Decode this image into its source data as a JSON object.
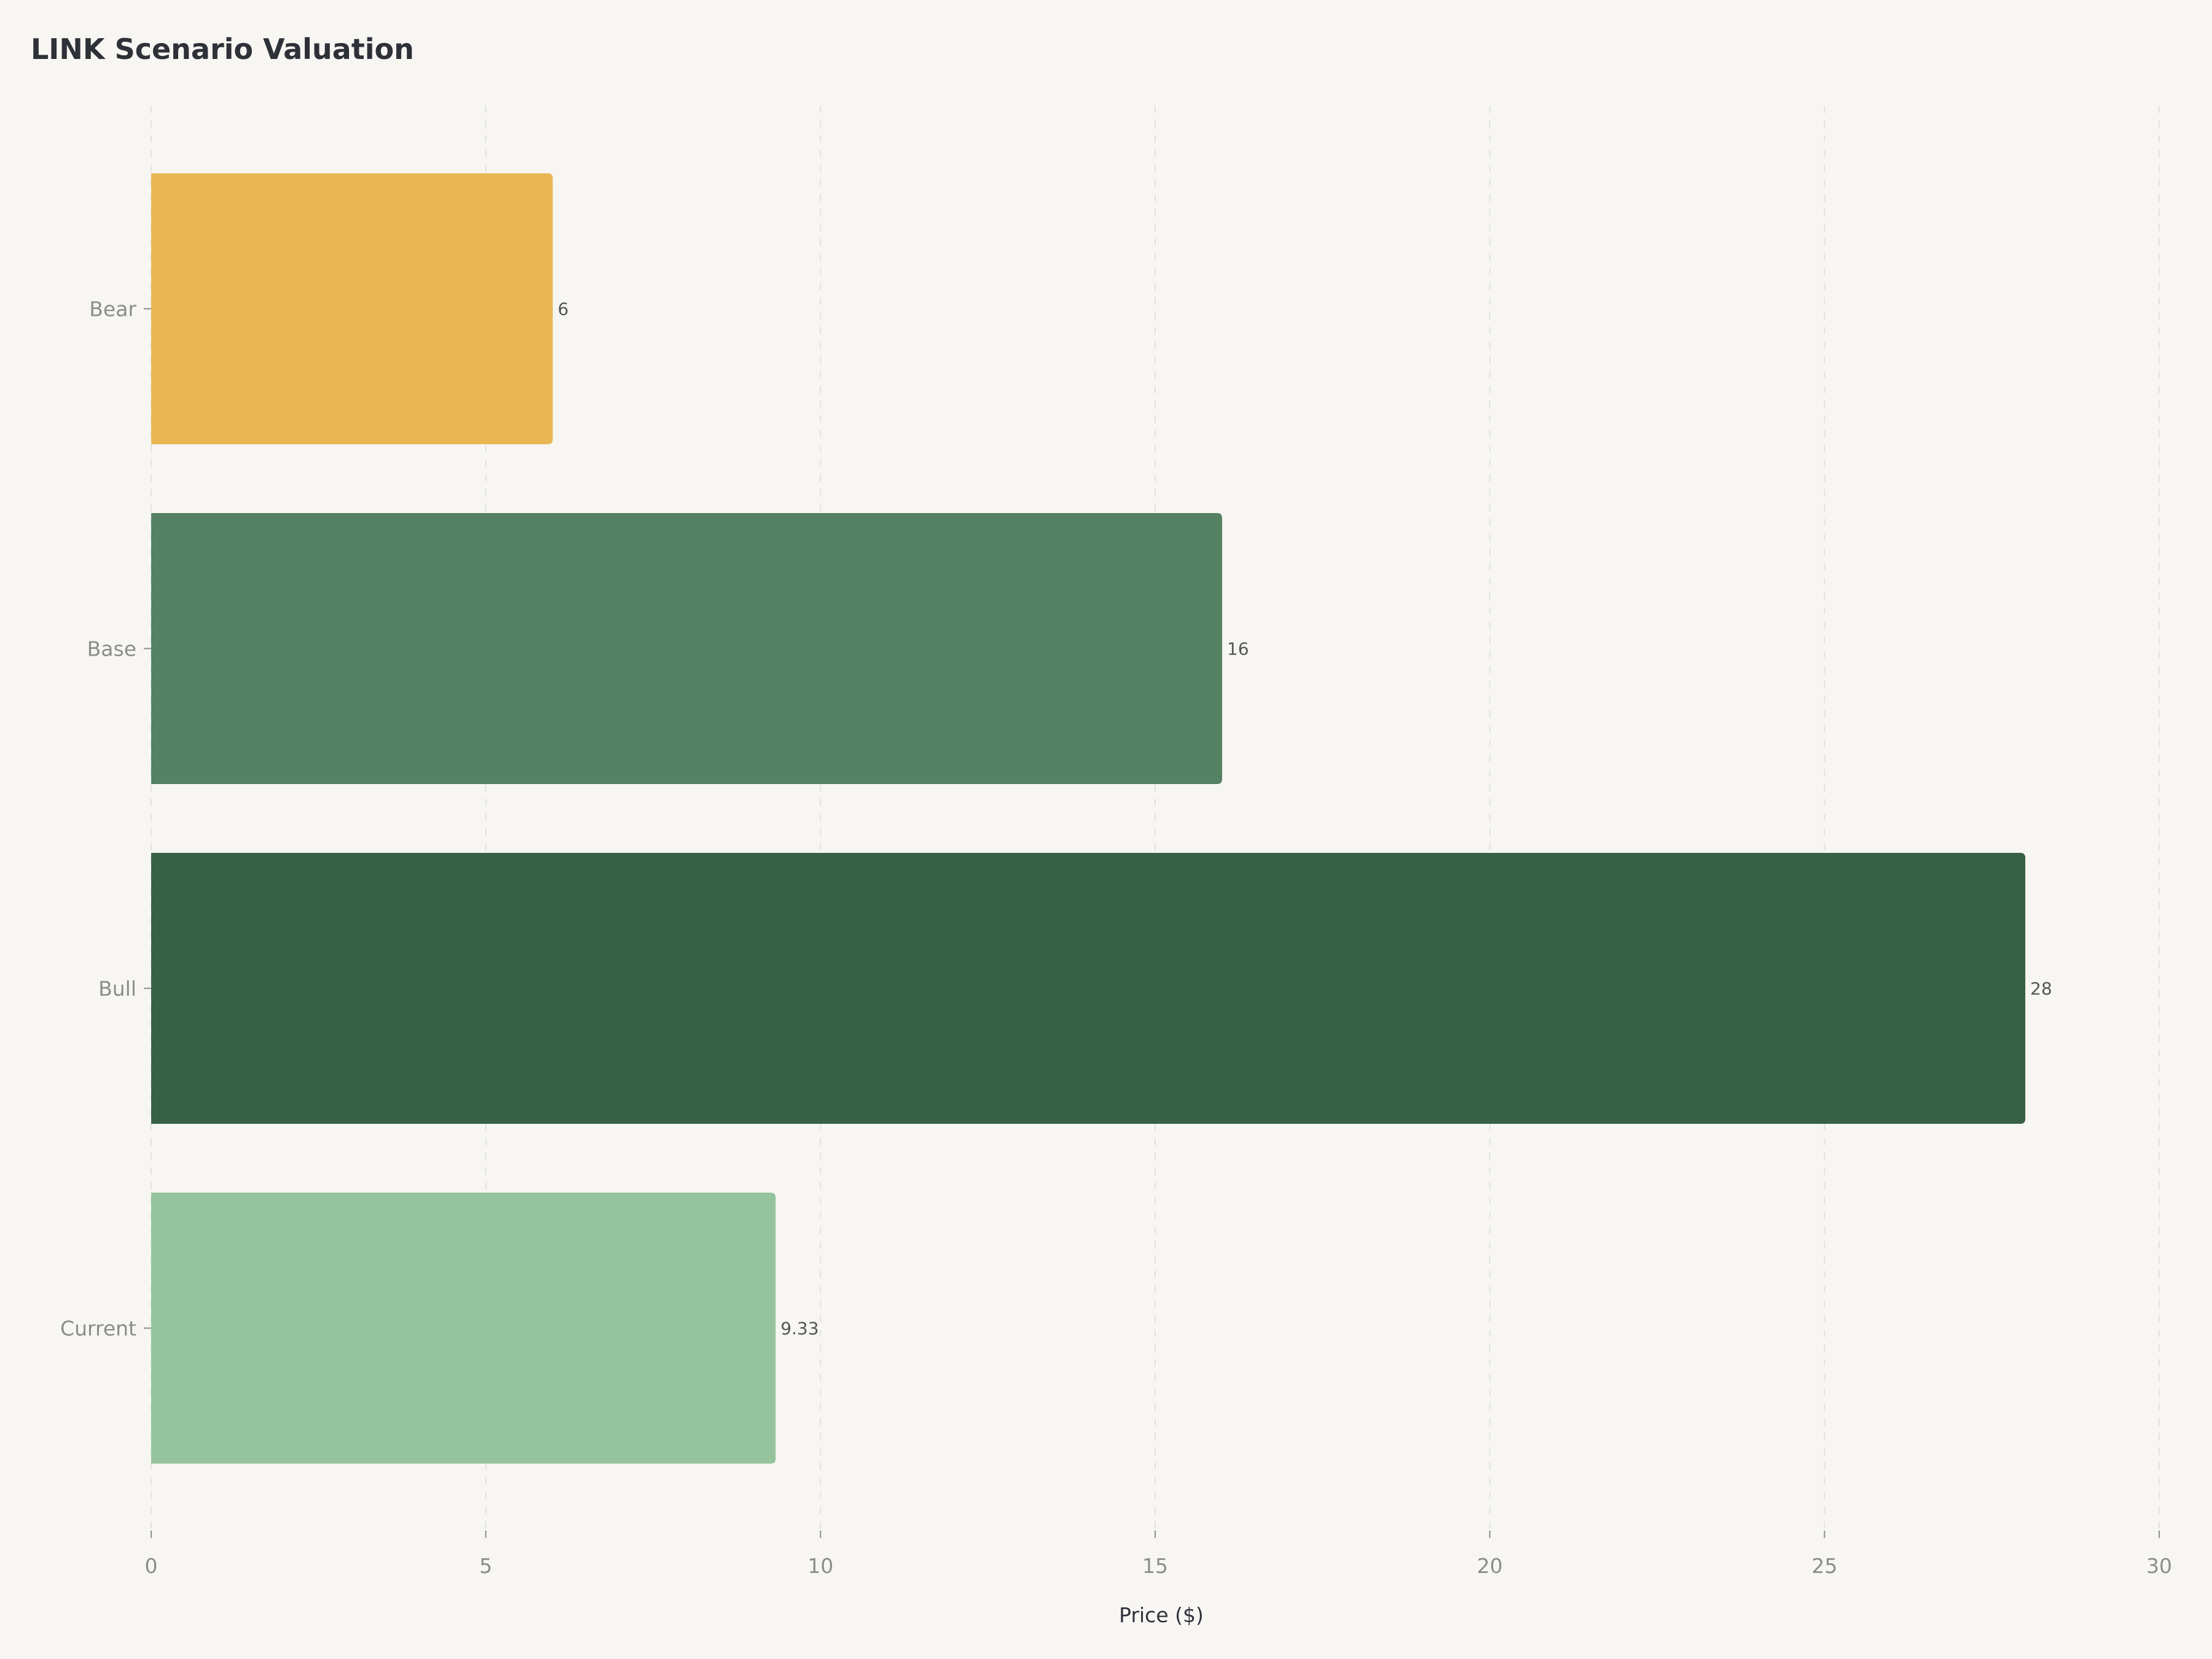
{
  "chart_data": {
    "type": "bar",
    "orientation": "horizontal",
    "title": "LINK Scenario Valuation",
    "xlabel": "Price ($)",
    "ylabel": "",
    "categories": [
      "Bear",
      "Base",
      "Bull",
      "Current"
    ],
    "values": [
      6,
      16,
      28,
      9.33
    ],
    "value_labels": [
      "6",
      "16",
      "28",
      "9.33"
    ],
    "colors": [
      "#e8b653",
      "#548262",
      "#376144",
      "#95c49c"
    ],
    "xlim": [
      0,
      30
    ],
    "xticks": [
      0,
      5,
      10,
      15,
      20,
      25,
      30
    ],
    "xtick_labels": [
      "0",
      "5",
      "10",
      "15",
      "20",
      "25",
      "30"
    ],
    "grid": "vertical dashed",
    "legend": "none",
    "background": "#f7f6f2"
  }
}
